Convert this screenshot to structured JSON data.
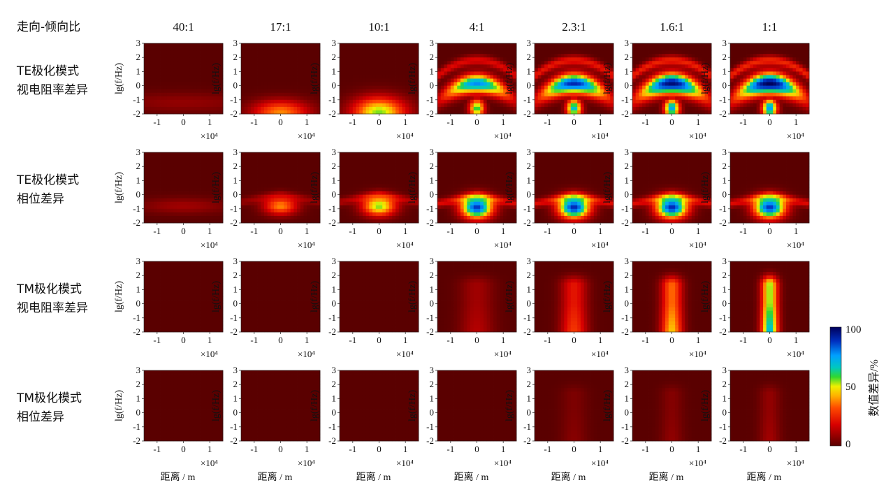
{
  "chart_data": {
    "type": "heatmap",
    "header_label": "走向-倾向比",
    "columns": [
      "40:1",
      "17:1",
      "10:1",
      "4:1",
      "2.3:1",
      "1.6:1",
      "1:1"
    ],
    "rows": [
      {
        "label_line1": "TE极化模式",
        "label_line2": "视电阻率差异"
      },
      {
        "label_line1": "TE极化模式",
        "label_line2": "相位差异"
      },
      {
        "label_line1": "TM极化模式",
        "label_line2": "视电阻率差异"
      },
      {
        "label_line1": "TM极化模式",
        "label_line2": "相位差异"
      }
    ],
    "ylabel": "lg(f/Hz)",
    "xlabel": "距离 / m",
    "x_multiplier": "×10⁴",
    "xlim": [
      -1.5,
      1.5
    ],
    "ylim": [
      -2,
      3
    ],
    "x_ticks": [
      "-1",
      "0",
      "1"
    ],
    "y_ticks": [
      "3",
      "2",
      "1",
      "0",
      "-1",
      "-2"
    ],
    "colorbar": {
      "label": "数值差异/%",
      "min": 0,
      "mid": 50,
      "max": 100,
      "ticks": [
        "100",
        "50",
        "0"
      ]
    },
    "panels": [
      [
        {
          "shape": "band",
          "amp": 0.08,
          "yc": -1.2,
          "xs": 2.0,
          "ys": 0.5
        },
        {
          "shape": "dome",
          "amp": 0.38,
          "yc": -1.9,
          "xs": 0.75,
          "ys": 0.6
        },
        {
          "shape": "dome",
          "amp": 0.55,
          "yc": -1.9,
          "xs": 0.7,
          "ys": 0.75
        },
        {
          "shape": "arch",
          "amp": 0.78
        },
        {
          "shape": "arch",
          "amp": 0.9
        },
        {
          "shape": "arch",
          "amp": 0.97
        },
        {
          "shape": "arch",
          "amp": 1.0
        }
      ],
      [
        {
          "shape": "band",
          "amp": 0.1,
          "yc": -0.8,
          "xs": 1.2,
          "ys": 0.4
        },
        {
          "shape": "spot",
          "amp": 0.38,
          "yc": -0.8,
          "xs": 0.45,
          "ys": 0.45
        },
        {
          "shape": "spot",
          "amp": 0.55,
          "yc": -0.8,
          "xs": 0.45,
          "ys": 0.5
        },
        {
          "shape": "spot",
          "amp": 0.88,
          "yc": -0.9,
          "xs": 0.42,
          "ys": 0.55
        },
        {
          "shape": "spot",
          "amp": 0.9,
          "yc": -0.9,
          "xs": 0.42,
          "ys": 0.55
        },
        {
          "shape": "spot",
          "amp": 0.9,
          "yc": -0.9,
          "xs": 0.42,
          "ys": 0.55
        },
        {
          "shape": "spot",
          "amp": 0.88,
          "yc": -0.9,
          "xs": 0.42,
          "ys": 0.55
        }
      ],
      [
        {
          "shape": "none",
          "amp": 0.0
        },
        {
          "shape": "none",
          "amp": 0.0
        },
        {
          "shape": "none",
          "amp": 0.0
        },
        {
          "shape": "column",
          "amp": 0.1,
          "xs": 0.45
        },
        {
          "shape": "column",
          "amp": 0.22,
          "xs": 0.35
        },
        {
          "shape": "column",
          "amp": 0.35,
          "xs": 0.28
        },
        {
          "shape": "column",
          "amp": 0.55,
          "xs": 0.22
        }
      ],
      [
        {
          "shape": "none",
          "amp": 0.0
        },
        {
          "shape": "none",
          "amp": 0.0
        },
        {
          "shape": "none",
          "amp": 0.0
        },
        {
          "shape": "none",
          "amp": 0.0
        },
        {
          "shape": "column",
          "amp": 0.05,
          "xs": 0.35
        },
        {
          "shape": "column",
          "amp": 0.06,
          "xs": 0.3
        },
        {
          "shape": "column",
          "amp": 0.08,
          "xs": 0.28
        }
      ]
    ]
  }
}
